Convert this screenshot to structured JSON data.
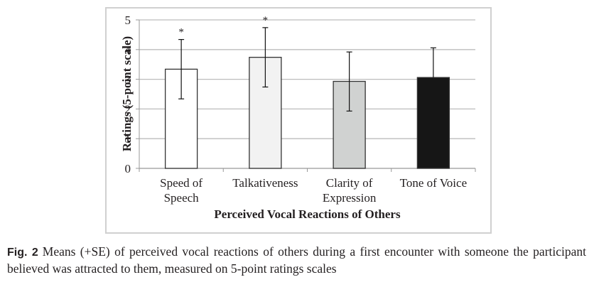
{
  "chart_data": {
    "type": "bar",
    "title": "",
    "xlabel": "Perceived Vocal Reactions of Others",
    "ylabel": "Ratings (5-point scale)",
    "ylim": [
      0,
      5
    ],
    "yticks": [
      "0",
      "1",
      "2",
      "3",
      "4",
      "5"
    ],
    "grid": true,
    "categories": [
      {
        "lines": [
          "Speed of",
          "Speech"
        ],
        "name": "Speed of Speech"
      },
      {
        "lines": [
          "Talkativeness"
        ],
        "name": "Talkativeness"
      },
      {
        "lines": [
          "Clarity of",
          "Expression"
        ],
        "name": "Clarity of Expression"
      },
      {
        "lines": [
          "Tone of Voice"
        ],
        "name": "Tone of Voice"
      }
    ],
    "values": [
      3.34,
      3.74,
      2.93,
      3.06
    ],
    "error_plus": [
      1.0,
      1.0,
      0.99,
      1.0
    ],
    "error_minus": [
      1.0,
      1.0,
      1.0,
      0
    ],
    "significance": [
      "*",
      "*",
      "",
      ""
    ],
    "bar_colors": [
      "#ffffff",
      "#f2f2f2",
      "#d0d2d1",
      "#161616"
    ]
  },
  "caption": {
    "label": "Fig. 2",
    "text": "Means (+SE) of perceived vocal reactions of others during a first encounter with someone the participant believed was attracted to them, measured on 5-point ratings scales"
  }
}
